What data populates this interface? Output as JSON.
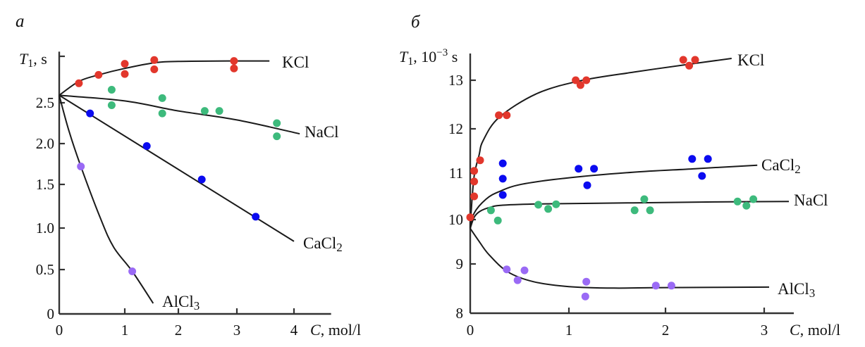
{
  "chart_data": [
    {
      "type": "scatter",
      "panel_label": "а",
      "title": "",
      "xlabel": {
        "symbol": "C",
        "text": ", mol/l"
      },
      "ylabel": {
        "symbol": "T",
        "subscript": "1",
        "text": ", s"
      },
      "xlim": [
        0,
        4.65
      ],
      "ylim": [
        0,
        3.05
      ],
      "xticks": [
        0,
        1,
        2,
        3,
        4
      ],
      "xtick_labels": [
        "0",
        "1",
        "2",
        "3",
        "4"
      ],
      "yticks": [
        0,
        0.5,
        1.0,
        1.5,
        2.0,
        2.5,
        3.0
      ],
      "ytick_labels": [
        "0",
        "0.5",
        "1.0",
        "1.5",
        "2.0",
        "2.5",
        ""
      ],
      "grid": false,
      "legend": "inline labels at curve ends",
      "series": [
        {
          "name": "KCl",
          "label": {
            "base": "KCl",
            "sub": ""
          },
          "color": "#e2372c",
          "points": {
            "x": [
              0.3,
              0.6,
              1.0,
              1.0,
              1.55,
              1.55,
              2.95,
              2.95
            ],
            "y": [
              2.71,
              2.8,
              2.92,
              2.81,
              2.96,
              2.86,
              2.95,
              2.87
            ]
          },
          "fit": {
            "x": [
              0,
              0.3,
              0.6,
              1.0,
              1.55,
              2.0,
              2.95,
              3.57
            ],
            "y": [
              2.58,
              2.73,
              2.8,
              2.87,
              2.93,
              2.945,
              2.95,
              2.95
            ]
          }
        },
        {
          "name": "NaCl",
          "label": {
            "base": "NaCl",
            "sub": ""
          },
          "color": "#3dba7c",
          "points": {
            "x": [
              0.8,
              0.8,
              1.7,
              1.7,
              2.45,
              2.7,
              3.7,
              3.7
            ],
            "y": [
              2.64,
              2.47,
              2.55,
              2.37,
              2.4,
              2.4,
              2.25,
              2.09
            ]
          },
          "fit": {
            "x": [
              0,
              1,
              2,
              3,
              4.1
            ],
            "y": [
              2.58,
              2.52,
              2.4,
              2.29,
              2.12
            ]
          }
        },
        {
          "name": "CaCl2",
          "label": {
            "base": "CaCl",
            "sub": "2"
          },
          "color": "#0b0bf0",
          "points": {
            "x": [
              0.47,
              1.41,
              2.4,
              3.33
            ],
            "y": [
              2.37,
              1.97,
              1.56,
              1.13
            ]
          },
          "fit": {
            "x": [
              0,
              4.0
            ],
            "y": [
              2.58,
              0.84
            ]
          }
        },
        {
          "name": "AlCl3",
          "label": {
            "base": "AlCl",
            "sub": "3"
          },
          "color": "#9a6af5",
          "points": {
            "x": [
              0.33,
              1.14
            ],
            "y": [
              1.72,
              0.48
            ]
          },
          "fit": {
            "x": [
              0,
              0.15,
              0.33,
              0.63,
              0.83,
              1.14,
              1.53
            ],
            "y": [
              2.58,
              2.15,
              1.72,
              1.11,
              0.77,
              0.48,
              0.12
            ]
          }
        }
      ]
    },
    {
      "type": "scatter",
      "panel_label": "б",
      "title": "",
      "xlabel": {
        "symbol": "C",
        "text": ", mol/l"
      },
      "ylabel": {
        "symbol": "T",
        "subscript": "1",
        "text": ", 10",
        "superscript": "−3",
        "suffix": " s"
      },
      "xlim": [
        0,
        3.3
      ],
      "ylim": [
        8,
        13.55
      ],
      "xticks": [
        0,
        1,
        2,
        3
      ],
      "xtick_labels": [
        "0",
        "1",
        "2",
        "3"
      ],
      "yticks": [
        8,
        9,
        10,
        11,
        12,
        13
      ],
      "ytick_labels": [
        "8",
        "9",
        "10",
        "11",
        "12",
        "13"
      ],
      "grid": false,
      "legend": "inline labels at curve ends",
      "series": [
        {
          "name": "KCl",
          "label": {
            "base": "KCl",
            "sub": ""
          },
          "color": "#e2372c",
          "points": {
            "x": [
              0,
              0.04,
              0.04,
              0.04,
              0.1,
              0.29,
              0.37,
              1.07,
              1.18,
              1.12,
              2.18,
              2.3,
              2.24
            ],
            "y": [
              10.05,
              10.5,
              10.82,
              11.05,
              11.29,
              12.28,
              12.28,
              13.0,
              13.0,
              12.9,
              13.42,
              13.42,
              13.3
            ]
          },
          "fit": {
            "x": [
              0,
              0.01,
              0.04,
              0.09,
              0.13,
              0.29,
              0.67,
              1.12,
              1.68,
              2.24,
              2.67
            ],
            "y": [
              9.8,
              10.18,
              10.94,
              11.41,
              11.73,
              12.23,
              12.72,
              12.99,
              13.17,
              13.33,
              13.45
            ]
          }
        },
        {
          "name": "NaCl",
          "label": {
            "base": "NaCl",
            "sub": ""
          },
          "color": "#3dba7c",
          "points": {
            "x": [
              0.21,
              0.28,
              0.69,
              0.79,
              0.87,
              1.68,
              1.78,
              1.84,
              2.73,
              2.82,
              2.89
            ],
            "y": [
              10.2,
              9.98,
              10.32,
              10.23,
              10.33,
              10.2,
              10.44,
              10.2,
              10.39,
              10.3,
              10.44
            ]
          },
          "fit": {
            "x": [
              0,
              0.04,
              0.1,
              0.21,
              0.33,
              0.76,
              1.66,
              2.5,
              3.25
            ],
            "y": [
              9.8,
              10.05,
              10.18,
              10.27,
              10.31,
              10.34,
              10.36,
              10.38,
              10.39
            ]
          }
        },
        {
          "name": "CaCl2",
          "label": {
            "base": "CaCl",
            "sub": "2"
          },
          "color": "#0b0bf0",
          "points": {
            "x": [
              0.33,
              0.33,
              0.33,
              1.1,
              1.26,
              1.19,
              2.27,
              2.43,
              2.37
            ],
            "y": [
              11.22,
              10.88,
              10.53,
              11.1,
              11.1,
              10.74,
              11.32,
              11.32,
              10.94
            ]
          },
          "fit": {
            "x": [
              0,
              0.04,
              0.16,
              0.29,
              0.52,
              1.0,
              1.66,
              2.3,
              2.93
            ],
            "y": [
              9.8,
              10.14,
              10.44,
              10.6,
              10.76,
              10.9,
              11.02,
              11.1,
              11.18
            ]
          }
        },
        {
          "name": "AlCl3",
          "label": {
            "base": "AlCl",
            "sub": "3"
          },
          "color": "#9a6af5",
          "points": {
            "x": [
              0.37,
              0.48,
              0.55,
              1.17,
              1.18,
              1.9,
              2.06
            ],
            "y": [
              8.89,
              8.67,
              8.87,
              8.34,
              8.64,
              8.56,
              8.56
            ]
          },
          "fit": {
            "x": [
              0,
              0.09,
              0.19,
              0.38,
              0.64,
              1.0,
              1.47,
              2.0,
              3.05
            ],
            "y": [
              9.8,
              9.51,
              9.21,
              8.84,
              8.64,
              8.54,
              8.51,
              8.52,
              8.53
            ]
          }
        }
      ]
    }
  ]
}
